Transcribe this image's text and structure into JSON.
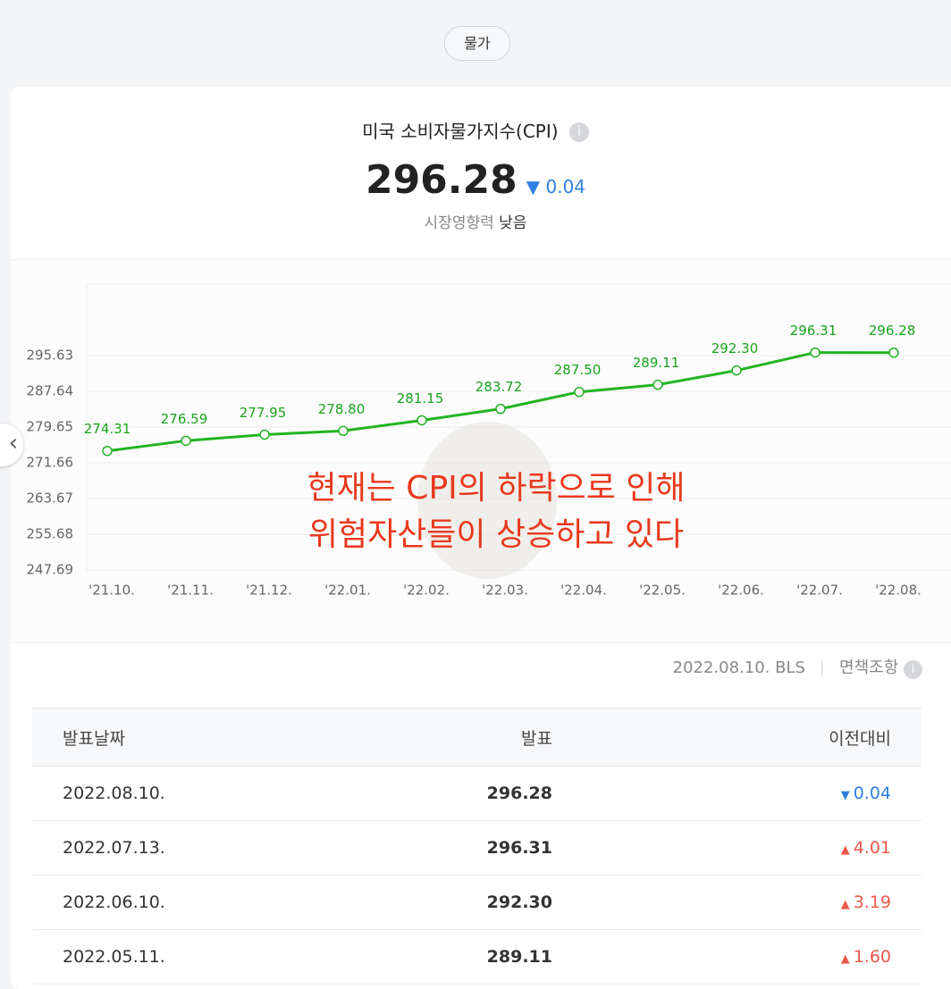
{
  "tag": "물가",
  "header": {
    "title": "미국 소비자물가지수(CPI)",
    "value": "296.28",
    "change": "0.04",
    "change_direction": "down",
    "impact_label": "시장영향력",
    "impact_value": "낮음"
  },
  "chart_data": {
    "type": "line",
    "categories": [
      "'21.10.",
      "'21.11.",
      "'21.12.",
      "'22.01.",
      "'22.02.",
      "'22.03.",
      "'22.04.",
      "'22.05.",
      "'22.06.",
      "'22.07.",
      "'22.08."
    ],
    "series": [
      {
        "name": "CPI",
        "color": "#22b422",
        "values": [
          274.31,
          276.59,
          277.95,
          278.8,
          281.15,
          283.72,
          287.5,
          289.11,
          292.3,
          296.31,
          296.28
        ],
        "value_labels": [
          "274.31",
          "276.59",
          "277.95",
          "278.80",
          "281.15",
          "283.72",
          "287.50",
          "289.11",
          "292.30",
          "296.31",
          "296.28"
        ]
      }
    ],
    "ylim": [
      247.69,
      311.61
    ],
    "yticks": [
      247.69,
      255.68,
      263.67,
      271.66,
      279.65,
      287.64,
      295.63
    ],
    "grid": true,
    "annotations": [
      "현재는 CPI의 하락으로 인해",
      "위험자산들이 상승하고 있다"
    ]
  },
  "source": {
    "date": "2022.08.10. BLS",
    "disclaimer": "면책조항"
  },
  "table": {
    "columns": [
      "발표날짜",
      "발표",
      "이전대비"
    ],
    "rows": [
      [
        "2022.08.10.",
        "296.28",
        "0.04"
      ],
      [
        "2022.07.13.",
        "296.31",
        "4.01"
      ],
      [
        "2022.06.10.",
        "292.30",
        "3.19"
      ],
      [
        "2022.05.11.",
        "289.11",
        "1.60"
      ]
    ],
    "directions": [
      "down",
      "up",
      "up",
      "up"
    ]
  }
}
